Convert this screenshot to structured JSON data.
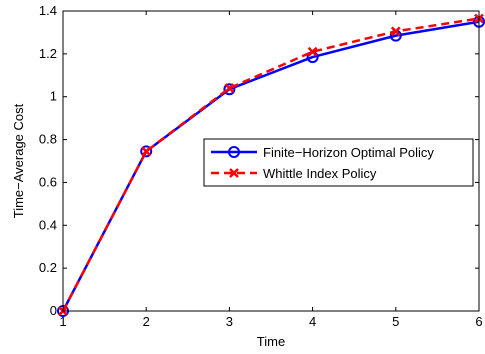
{
  "chart_data": {
    "type": "line",
    "title": "",
    "xlabel": "Time",
    "ylabel": "Time−Average Cost",
    "x": [
      1,
      2,
      3,
      4,
      5,
      6
    ],
    "xlim": [
      1,
      6
    ],
    "ylim": [
      0,
      1.4
    ],
    "xticks": [
      "1",
      "2",
      "3",
      "4",
      "5",
      "6"
    ],
    "yticks": [
      "0",
      "0.2",
      "0.4",
      "0.6",
      "0.8",
      "1",
      "1.2",
      "1.4"
    ],
    "grid": false,
    "legend_position": "center-right",
    "series": [
      {
        "name": "Finite−Horizon Optimal Policy",
        "values": [
          0.0,
          0.745,
          1.035,
          1.185,
          1.285,
          1.35
        ],
        "color": "#0000ff",
        "line_style": "solid",
        "marker": "circle"
      },
      {
        "name": "Whittle Index Policy",
        "values": [
          0.0,
          0.745,
          1.04,
          1.21,
          1.305,
          1.365
        ],
        "color": "#ff0000",
        "line_style": "dashed",
        "marker": "x"
      }
    ]
  }
}
